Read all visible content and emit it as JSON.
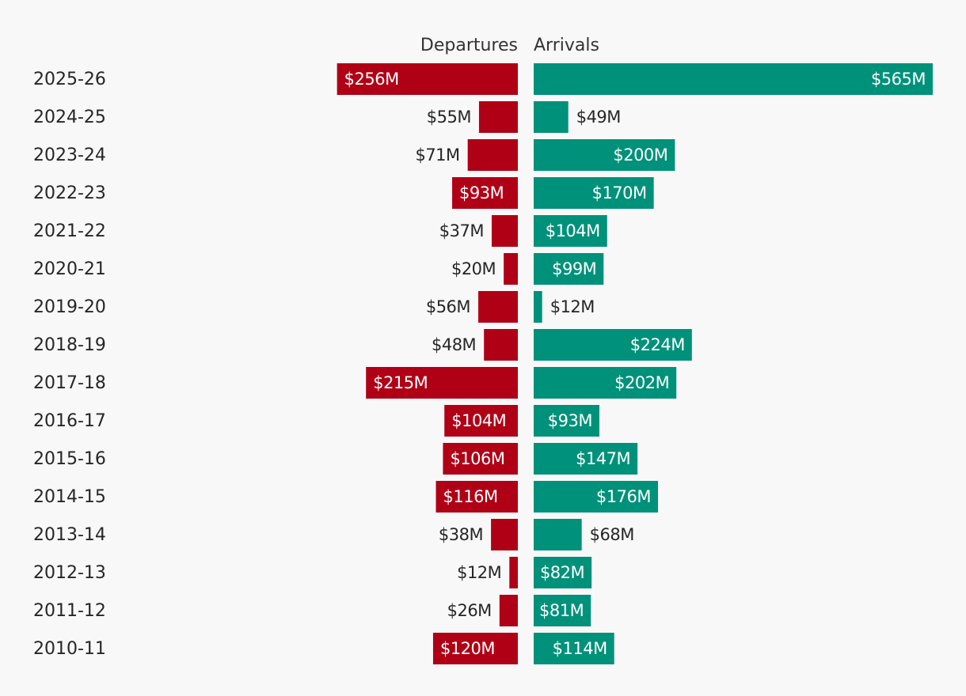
{
  "chart_data": {
    "type": "bar",
    "orientation": "horizontal-diverging",
    "categories": [
      "2025-26",
      "2024-25",
      "2023-24",
      "2022-23",
      "2021-22",
      "2020-21",
      "2019-20",
      "2018-19",
      "2017-18",
      "2016-17",
      "2015-16",
      "2014-15",
      "2013-14",
      "2012-13",
      "2011-12",
      "2010-11"
    ],
    "series": [
      {
        "name": "Departures",
        "direction": "left",
        "color": "#b00016",
        "values": [
          256,
          55,
          71,
          93,
          37,
          20,
          56,
          48,
          215,
          104,
          106,
          116,
          38,
          12,
          26,
          120
        ],
        "labels": [
          "$256M",
          "$55M",
          "$71M",
          "$93M",
          "$37M",
          "$20M",
          "$56M",
          "$48M",
          "$215M",
          "$104M",
          "$106M",
          "$116M",
          "$38M",
          "$12M",
          "$26M",
          "$120M"
        ]
      },
      {
        "name": "Arrivals",
        "direction": "right",
        "color": "#00917a",
        "values": [
          565,
          49,
          200,
          170,
          104,
          99,
          12,
          224,
          202,
          93,
          147,
          176,
          68,
          82,
          81,
          114
        ],
        "labels": [
          "$565M",
          "$49M",
          "$200M",
          "$170M",
          "$104M",
          "$99M",
          "$12M",
          "$224M",
          "$202M",
          "$93M",
          "$147M",
          "$176M",
          "$68M",
          "$82M",
          "$81M",
          "$114M"
        ]
      }
    ],
    "unit": "$M",
    "title": "",
    "xlabel": "",
    "ylabel": ""
  }
}
